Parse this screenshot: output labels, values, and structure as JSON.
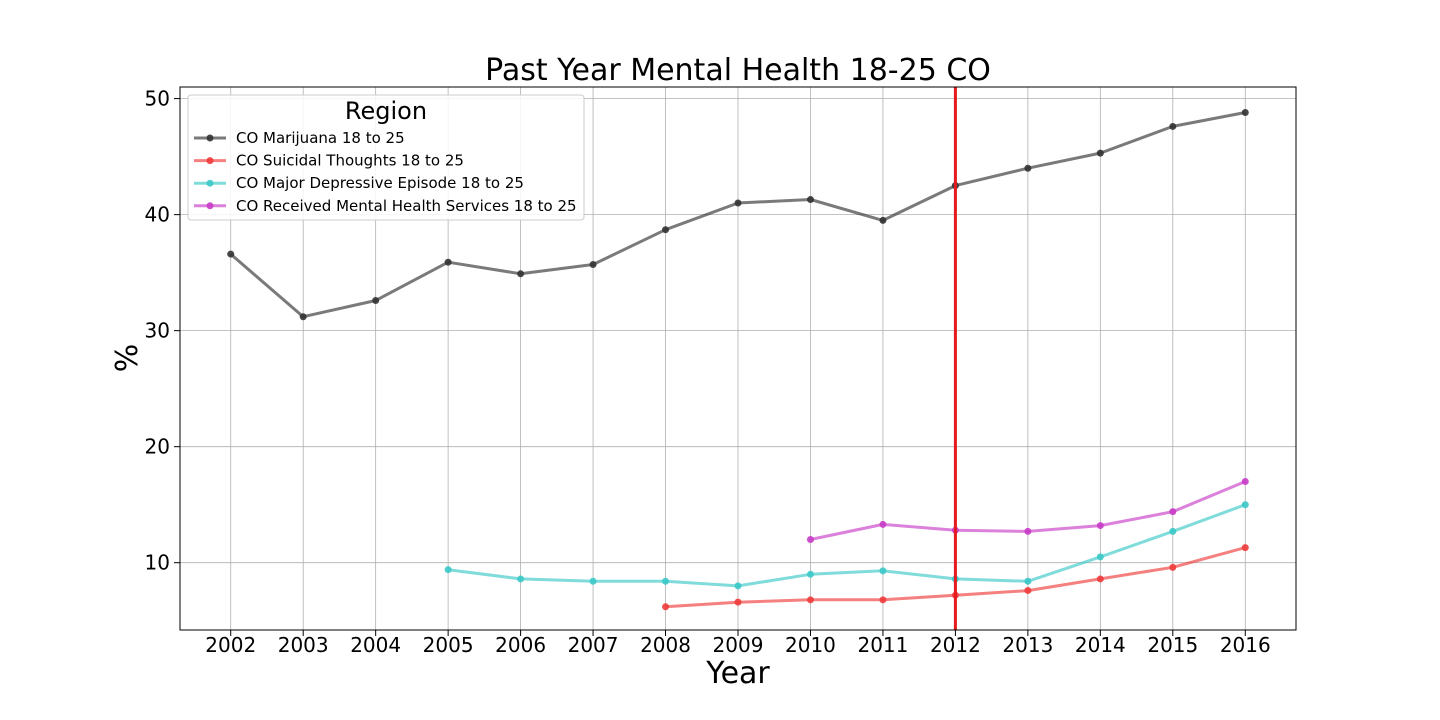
{
  "chart_data": {
    "type": "line",
    "title": "Past Year Mental Health 18-25 CO",
    "xlabel": "Year",
    "ylabel": "%",
    "x": [
      2002,
      2003,
      2004,
      2005,
      2006,
      2007,
      2008,
      2009,
      2010,
      2011,
      2012,
      2013,
      2014,
      2015,
      2016
    ],
    "xlim": [
      2001.3,
      2016.7
    ],
    "ylim": [
      4.2,
      51
    ],
    "yticks": [
      10,
      20,
      30,
      40,
      50
    ],
    "grid": true,
    "legend": {
      "title": "Region",
      "placement": "top-left"
    },
    "vline": {
      "x": 2012,
      "color": "#e41a1c"
    },
    "series": [
      {
        "name": "CO Marijuana 18 to 25",
        "color": "#333333",
        "values": [
          36.6,
          31.2,
          32.6,
          35.9,
          34.9,
          35.7,
          38.7,
          41.0,
          41.3,
          39.5,
          42.5,
          44.0,
          45.3,
          47.6,
          48.8
        ]
      },
      {
        "name": "CO Suicidal Thoughts 18 to 25",
        "color": "#f03c3c",
        "values": [
          null,
          null,
          null,
          null,
          null,
          null,
          6.2,
          6.6,
          6.8,
          6.8,
          7.2,
          7.6,
          8.6,
          9.6,
          11.3
        ]
      },
      {
        "name": "CO Major Depressive Episode 18 to 25",
        "color": "#3cc8c8",
        "values": [
          null,
          null,
          null,
          9.4,
          8.6,
          8.4,
          8.4,
          8.0,
          9.0,
          9.3,
          8.6,
          8.4,
          10.5,
          12.7,
          15.0
        ]
      },
      {
        "name": "CO Received Mental Health Services 18 to 25",
        "color": "#c83cc8",
        "values": [
          null,
          null,
          null,
          null,
          null,
          null,
          null,
          null,
          12.0,
          13.3,
          12.8,
          12.7,
          13.2,
          14.4,
          17.0
        ]
      }
    ]
  }
}
